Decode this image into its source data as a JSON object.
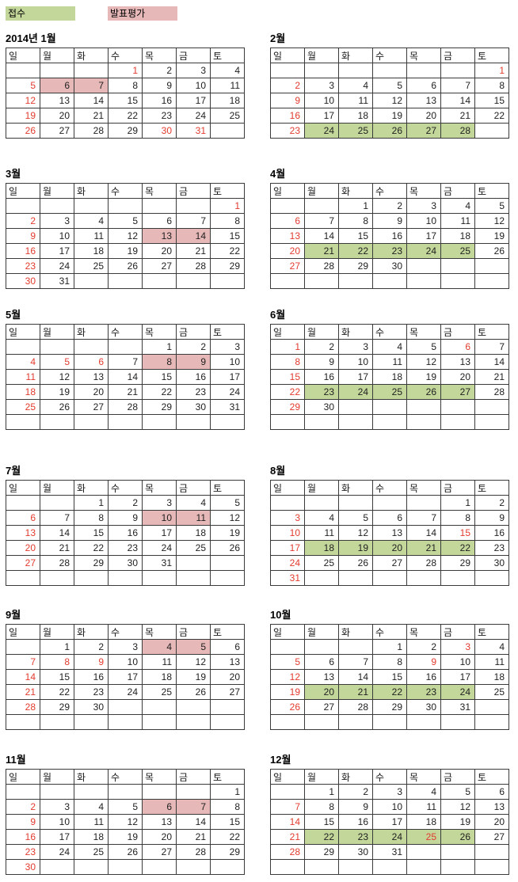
{
  "colors": {
    "green": "#C4D79B",
    "pink": "#E6B8B7",
    "red": "#E33B2E",
    "text": "#1F1F1F",
    "border": "#3A3A3A"
  },
  "legend": {
    "items": [
      {
        "label": "접수",
        "color_key": "green"
      },
      {
        "label": "발표평가",
        "color_key": "pink"
      }
    ]
  },
  "weekdays": [
    "일",
    "월",
    "화",
    "수",
    "목",
    "금",
    "토"
  ],
  "months": [
    {
      "title": "2014년 1월",
      "weeks": [
        [
          "",
          "",
          "",
          {
            "v": 1,
            "red": true
          },
          2,
          3,
          4
        ],
        [
          {
            "v": 5,
            "red": true
          },
          {
            "v": 6,
            "bg": "p"
          },
          {
            "v": 7,
            "bg": "p"
          },
          8,
          9,
          10,
          11
        ],
        [
          {
            "v": 12,
            "red": true
          },
          13,
          14,
          15,
          16,
          17,
          18
        ],
        [
          {
            "v": 19,
            "red": true
          },
          20,
          21,
          22,
          23,
          24,
          25
        ],
        [
          {
            "v": 26,
            "red": true
          },
          27,
          28,
          29,
          {
            "v": 30,
            "red": true
          },
          {
            "v": 31,
            "red": true
          },
          ""
        ]
      ]
    },
    {
      "title": "2월",
      "weeks": [
        [
          "",
          "",
          "",
          "",
          "",
          "",
          {
            "v": 1,
            "red": true
          }
        ],
        [
          {
            "v": 2,
            "red": true
          },
          3,
          4,
          5,
          6,
          7,
          8
        ],
        [
          {
            "v": 9,
            "red": true
          },
          10,
          11,
          12,
          13,
          14,
          15
        ],
        [
          {
            "v": 16,
            "red": true
          },
          17,
          18,
          19,
          20,
          21,
          22
        ],
        [
          {
            "v": 23,
            "red": true
          },
          {
            "v": 24,
            "bg": "g"
          },
          {
            "v": 25,
            "bg": "g"
          },
          {
            "v": 26,
            "bg": "g"
          },
          {
            "v": 27,
            "bg": "g"
          },
          {
            "v": 28,
            "bg": "g"
          },
          ""
        ]
      ]
    },
    {
      "title": "3월",
      "weeks": [
        [
          "",
          "",
          "",
          "",
          "",
          "",
          {
            "v": 1,
            "red": true
          }
        ],
        [
          {
            "v": 2,
            "red": true
          },
          3,
          4,
          5,
          6,
          7,
          8
        ],
        [
          {
            "v": 9,
            "red": true
          },
          10,
          11,
          12,
          {
            "v": 13,
            "bg": "p"
          },
          {
            "v": 14,
            "bg": "p"
          },
          15
        ],
        [
          {
            "v": 16,
            "red": true
          },
          17,
          18,
          19,
          20,
          21,
          22
        ],
        [
          {
            "v": 23,
            "red": true
          },
          24,
          25,
          26,
          27,
          28,
          29
        ],
        [
          {
            "v": 30,
            "red": true
          },
          31,
          "",
          "",
          "",
          "",
          ""
        ]
      ]
    },
    {
      "title": "4월",
      "weeks": [
        [
          "",
          "",
          1,
          2,
          3,
          4,
          5
        ],
        [
          {
            "v": 6,
            "red": true
          },
          7,
          8,
          9,
          10,
          11,
          12
        ],
        [
          {
            "v": 13,
            "red": true
          },
          14,
          15,
          16,
          17,
          18,
          19
        ],
        [
          {
            "v": 20,
            "red": true
          },
          {
            "v": 21,
            "bg": "g"
          },
          {
            "v": 22,
            "bg": "g"
          },
          {
            "v": 23,
            "bg": "g"
          },
          {
            "v": 24,
            "bg": "g"
          },
          {
            "v": 25,
            "bg": "g"
          },
          26
        ],
        [
          {
            "v": 27,
            "red": true
          },
          28,
          29,
          30,
          "",
          "",
          ""
        ],
        [
          "",
          "",
          "",
          "",
          "",
          "",
          ""
        ]
      ]
    },
    {
      "title": "5월",
      "weeks": [
        [
          "",
          "",
          "",
          "",
          1,
          2,
          3
        ],
        [
          {
            "v": 4,
            "red": true
          },
          {
            "v": 5,
            "red": true
          },
          {
            "v": 6,
            "red": true
          },
          7,
          {
            "v": 8,
            "bg": "p"
          },
          {
            "v": 9,
            "bg": "p"
          },
          10
        ],
        [
          {
            "v": 11,
            "red": true
          },
          12,
          13,
          14,
          15,
          16,
          17
        ],
        [
          {
            "v": 18,
            "red": true
          },
          19,
          20,
          21,
          22,
          23,
          24
        ],
        [
          {
            "v": 25,
            "red": true
          },
          26,
          27,
          28,
          29,
          30,
          31
        ],
        [
          "",
          "",
          "",
          "",
          "",
          "",
          ""
        ]
      ]
    },
    {
      "title": "6월",
      "weeks": [
        [
          {
            "v": 1,
            "red": true
          },
          2,
          3,
          4,
          5,
          {
            "v": 6,
            "red": true
          },
          7
        ],
        [
          {
            "v": 8,
            "red": true
          },
          9,
          10,
          11,
          12,
          13,
          14
        ],
        [
          {
            "v": 15,
            "red": true
          },
          16,
          17,
          18,
          19,
          20,
          21
        ],
        [
          {
            "v": 22,
            "red": true
          },
          {
            "v": 23,
            "bg": "g"
          },
          {
            "v": 24,
            "bg": "g"
          },
          {
            "v": 25,
            "bg": "g"
          },
          {
            "v": 26,
            "bg": "g"
          },
          {
            "v": 27,
            "bg": "g"
          },
          28
        ],
        [
          {
            "v": 29,
            "red": true
          },
          30,
          "",
          "",
          "",
          "",
          ""
        ],
        [
          "",
          "",
          "",
          "",
          "",
          "",
          ""
        ]
      ]
    },
    {
      "title": "7월",
      "weeks": [
        [
          "",
          "",
          1,
          2,
          3,
          4,
          5
        ],
        [
          {
            "v": 6,
            "red": true
          },
          7,
          8,
          9,
          {
            "v": 10,
            "bg": "p"
          },
          {
            "v": 11,
            "bg": "p"
          },
          12
        ],
        [
          {
            "v": 13,
            "red": true
          },
          14,
          15,
          16,
          17,
          18,
          19
        ],
        [
          {
            "v": 20,
            "red": true
          },
          21,
          22,
          23,
          24,
          25,
          26
        ],
        [
          {
            "v": 27,
            "red": true
          },
          28,
          29,
          30,
          31,
          "",
          ""
        ],
        [
          "",
          "",
          "",
          "",
          "",
          "",
          ""
        ]
      ]
    },
    {
      "title": "8월",
      "weeks": [
        [
          "",
          "",
          "",
          "",
          "",
          1,
          2
        ],
        [
          {
            "v": 3,
            "red": true
          },
          4,
          5,
          6,
          7,
          8,
          9
        ],
        [
          {
            "v": 10,
            "red": true
          },
          11,
          12,
          13,
          14,
          {
            "v": 15,
            "red": true
          },
          16
        ],
        [
          {
            "v": 17,
            "red": true
          },
          {
            "v": 18,
            "bg": "g"
          },
          {
            "v": 19,
            "bg": "g"
          },
          {
            "v": 20,
            "bg": "g"
          },
          {
            "v": 21,
            "bg": "g"
          },
          {
            "v": 22,
            "bg": "g"
          },
          23
        ],
        [
          {
            "v": 24,
            "red": true
          },
          25,
          26,
          27,
          28,
          29,
          30
        ],
        [
          {
            "v": 31,
            "red": true
          },
          "",
          "",
          "",
          "",
          "",
          ""
        ]
      ]
    },
    {
      "title": "9월",
      "weeks": [
        [
          "",
          1,
          2,
          3,
          {
            "v": 4,
            "bg": "p"
          },
          {
            "v": 5,
            "bg": "p"
          },
          6
        ],
        [
          {
            "v": 7,
            "red": true
          },
          {
            "v": 8,
            "red": true
          },
          {
            "v": 9,
            "red": true
          },
          10,
          11,
          12,
          13
        ],
        [
          {
            "v": 14,
            "red": true
          },
          15,
          16,
          17,
          18,
          19,
          20
        ],
        [
          {
            "v": 21,
            "red": true
          },
          22,
          23,
          24,
          25,
          26,
          27
        ],
        [
          {
            "v": 28,
            "red": true
          },
          29,
          30,
          "",
          "",
          "",
          ""
        ],
        [
          "",
          "",
          "",
          "",
          "",
          "",
          ""
        ]
      ]
    },
    {
      "title": "10월",
      "weeks": [
        [
          "",
          "",
          "",
          1,
          2,
          {
            "v": 3,
            "red": true
          },
          4
        ],
        [
          {
            "v": 5,
            "red": true
          },
          6,
          7,
          8,
          {
            "v": 9,
            "red": true
          },
          10,
          11
        ],
        [
          {
            "v": 12,
            "red": true
          },
          13,
          14,
          15,
          16,
          17,
          18
        ],
        [
          {
            "v": 19,
            "red": true
          },
          {
            "v": 20,
            "bg": "g"
          },
          {
            "v": 21,
            "bg": "g"
          },
          {
            "v": 22,
            "bg": "g"
          },
          {
            "v": 23,
            "bg": "g"
          },
          {
            "v": 24,
            "bg": "g"
          },
          25
        ],
        [
          {
            "v": 26,
            "red": true
          },
          27,
          28,
          29,
          30,
          31,
          ""
        ],
        [
          "",
          "",
          "",
          "",
          "",
          "",
          ""
        ]
      ]
    },
    {
      "title": "11월",
      "weeks": [
        [
          "",
          "",
          "",
          "",
          "",
          "",
          1
        ],
        [
          {
            "v": 2,
            "red": true
          },
          3,
          4,
          5,
          {
            "v": 6,
            "bg": "p"
          },
          {
            "v": 7,
            "bg": "p"
          },
          8
        ],
        [
          {
            "v": 9,
            "red": true
          },
          10,
          11,
          12,
          13,
          14,
          15
        ],
        [
          {
            "v": 16,
            "red": true
          },
          17,
          18,
          19,
          20,
          21,
          22
        ],
        [
          {
            "v": 23,
            "red": true
          },
          24,
          25,
          26,
          27,
          28,
          29
        ],
        [
          {
            "v": 30,
            "red": true
          },
          "",
          "",
          "",
          "",
          "",
          ""
        ]
      ]
    },
    {
      "title": "12월",
      "weeks": [
        [
          "",
          1,
          2,
          3,
          4,
          5,
          6
        ],
        [
          {
            "v": 7,
            "red": true
          },
          8,
          9,
          10,
          11,
          12,
          13
        ],
        [
          {
            "v": 14,
            "red": true
          },
          15,
          16,
          17,
          18,
          19,
          20
        ],
        [
          {
            "v": 21,
            "red": true
          },
          {
            "v": 22,
            "bg": "g"
          },
          {
            "v": 23,
            "bg": "g"
          },
          {
            "v": 24,
            "bg": "g"
          },
          {
            "v": 25,
            "red": true,
            "bg": "g"
          },
          {
            "v": 26,
            "bg": "g"
          },
          27
        ],
        [
          {
            "v": 28,
            "red": true
          },
          29,
          30,
          31,
          "",
          "",
          ""
        ],
        [
          "",
          "",
          "",
          "",
          "",
          "",
          ""
        ]
      ]
    }
  ]
}
